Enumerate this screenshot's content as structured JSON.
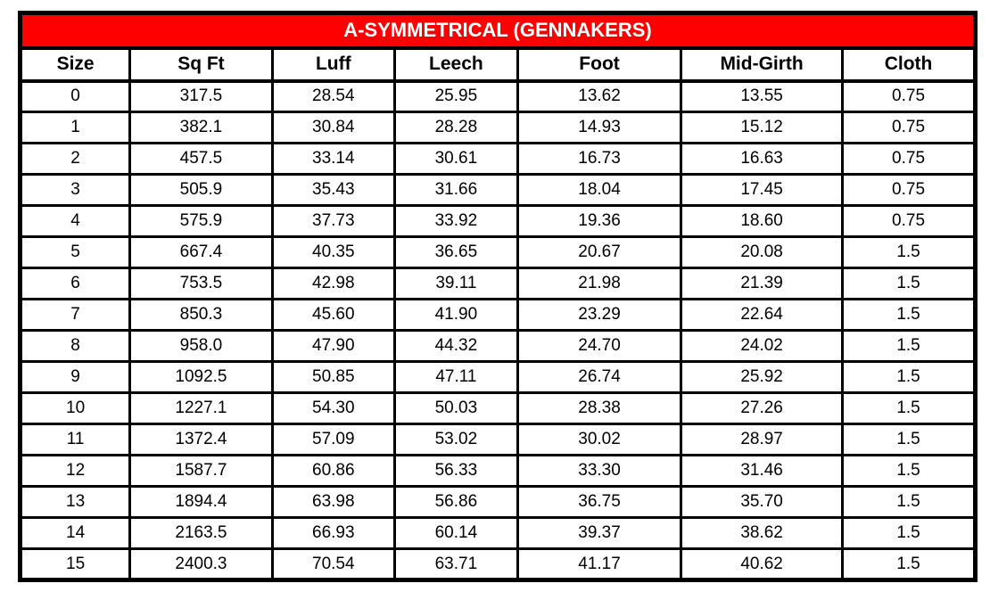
{
  "chart_data": {
    "type": "table",
    "title": "A-SYMMETRICAL (GENNAKERS)",
    "columns": [
      "Size",
      "Sq Ft",
      "Luff",
      "Leech",
      "Foot",
      "Mid-Girth",
      "Cloth"
    ],
    "rows": [
      [
        "0",
        "317.5",
        "28.54",
        "25.95",
        "13.62",
        "13.55",
        "0.75"
      ],
      [
        "1",
        "382.1",
        "30.84",
        "28.28",
        "14.93",
        "15.12",
        "0.75"
      ],
      [
        "2",
        "457.5",
        "33.14",
        "30.61",
        "16.73",
        "16.63",
        "0.75"
      ],
      [
        "3",
        "505.9",
        "35.43",
        "31.66",
        "18.04",
        "17.45",
        "0.75"
      ],
      [
        "4",
        "575.9",
        "37.73",
        "33.92",
        "19.36",
        "18.60",
        "0.75"
      ],
      [
        "5",
        "667.4",
        "40.35",
        "36.65",
        "20.67",
        "20.08",
        "1.5"
      ],
      [
        "6",
        "753.5",
        "42.98",
        "39.11",
        "21.98",
        "21.39",
        "1.5"
      ],
      [
        "7",
        "850.3",
        "45.60",
        "41.90",
        "23.29",
        "22.64",
        "1.5"
      ],
      [
        "8",
        "958.0",
        "47.90",
        "44.32",
        "24.70",
        "24.02",
        "1.5"
      ],
      [
        "9",
        "1092.5",
        "50.85",
        "47.11",
        "26.74",
        "25.92",
        "1.5"
      ],
      [
        "10",
        "1227.1",
        "54.30",
        "50.03",
        "28.38",
        "27.26",
        "1.5"
      ],
      [
        "11",
        "1372.4",
        "57.09",
        "53.02",
        "30.02",
        "28.97",
        "1.5"
      ],
      [
        "12",
        "1587.7",
        "60.86",
        "56.33",
        "33.30",
        "31.46",
        "1.5"
      ],
      [
        "13",
        "1894.4",
        "63.98",
        "56.86",
        "36.75",
        "35.70",
        "1.5"
      ],
      [
        "14",
        "2163.5",
        "66.93",
        "60.14",
        "39.37",
        "38.62",
        "1.5"
      ],
      [
        "15",
        "2400.3",
        "70.54",
        "63.71",
        "41.17",
        "40.62",
        "1.5"
      ]
    ]
  },
  "colors": {
    "title_bg": "#FF0000",
    "title_text": "#FFFFFF",
    "border": "#000000",
    "cell_bg": "#FFFFFF",
    "cell_text": "#000000"
  }
}
